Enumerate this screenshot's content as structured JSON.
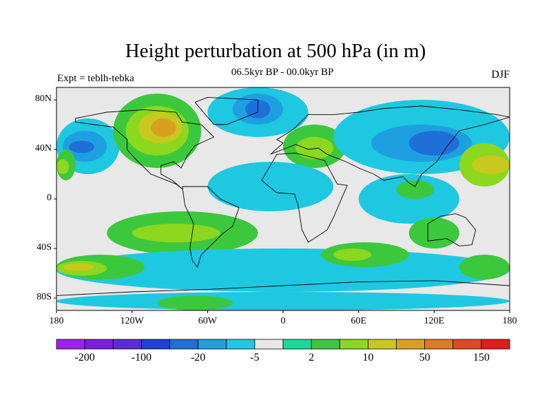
{
  "title": "Height perturbation at 500 hPa (in m)",
  "subtitle": "06.5kyr BP - 00.0kyr BP",
  "left_label": "Expt = teblh-tebka",
  "right_label": "DJF",
  "map": {
    "lat_range": [
      -90,
      90
    ],
    "lon_range": [
      -180,
      180
    ],
    "lat_ticks": [
      {
        "value": 80,
        "label": "80N"
      },
      {
        "value": 40,
        "label": "40N"
      },
      {
        "value": 0,
        "label": "0"
      },
      {
        "value": -40,
        "label": "40S"
      },
      {
        "value": -80,
        "label": "80S"
      }
    ],
    "lon_ticks": [
      {
        "value": -180,
        "label": "180"
      },
      {
        "value": -120,
        "label": "120W"
      },
      {
        "value": -60,
        "label": "60W"
      },
      {
        "value": 0,
        "label": "0"
      },
      {
        "value": 60,
        "label": "60E"
      },
      {
        "value": 120,
        "label": "120E"
      },
      {
        "value": 180,
        "label": "180"
      }
    ],
    "ocean_land_background": "#e8e8e8",
    "anomaly_regions": [
      {
        "level": 6,
        "lon": [
          -180,
          -130
        ],
        "lat": [
          20,
          65
        ]
      },
      {
        "level": 5,
        "lon": [
          -175,
          -140
        ],
        "lat": [
          30,
          55
        ]
      },
      {
        "level": 4,
        "lon": [
          -170,
          -150
        ],
        "lat": [
          37,
          47
        ]
      },
      {
        "level": 9,
        "lon": [
          -135,
          -65
        ],
        "lat": [
          25,
          85
        ]
      },
      {
        "level": 10,
        "lon": [
          -125,
          -75
        ],
        "lat": [
          35,
          75
        ]
      },
      {
        "level": 11,
        "lon": [
          -115,
          -80
        ],
        "lat": [
          45,
          70
        ]
      },
      {
        "level": 12,
        "lon": [
          -105,
          -85
        ],
        "lat": [
          50,
          65
        ]
      },
      {
        "level": 9,
        "lon": [
          -180,
          -165
        ],
        "lat": [
          15,
          40
        ]
      },
      {
        "level": 10,
        "lon": [
          -180,
          -170
        ],
        "lat": [
          20,
          32
        ]
      },
      {
        "level": 6,
        "lon": [
          -60,
          20
        ],
        "lat": [
          50,
          90
        ]
      },
      {
        "level": 5,
        "lon": [
          -40,
          0
        ],
        "lat": [
          60,
          85
        ]
      },
      {
        "level": 4,
        "lon": [
          -30,
          -10
        ],
        "lat": [
          65,
          80
        ]
      },
      {
        "level": 9,
        "lon": [
          0,
          50
        ],
        "lat": [
          25,
          60
        ]
      },
      {
        "level": 10,
        "lon": [
          10,
          40
        ],
        "lat": [
          32,
          50
        ]
      },
      {
        "level": 6,
        "lon": [
          40,
          180
        ],
        "lat": [
          20,
          80
        ]
      },
      {
        "level": 5,
        "lon": [
          70,
          150
        ],
        "lat": [
          30,
          60
        ]
      },
      {
        "level": 4,
        "lon": [
          100,
          140
        ],
        "lat": [
          35,
          55
        ]
      },
      {
        "level": 10,
        "lon": [
          140,
          180
        ],
        "lat": [
          10,
          45
        ]
      },
      {
        "level": 11,
        "lon": [
          150,
          180
        ],
        "lat": [
          20,
          35
        ]
      },
      {
        "level": 6,
        "lon": [
          -60,
          40
        ],
        "lat": [
          -10,
          30
        ]
      },
      {
        "level": 6,
        "lon": [
          60,
          140
        ],
        "lat": [
          -20,
          20
        ]
      },
      {
        "level": 9,
        "lon": [
          90,
          120
        ],
        "lat": [
          0,
          15
        ]
      },
      {
        "level": 9,
        "lon": [
          -140,
          -20
        ],
        "lat": [
          -45,
          -10
        ]
      },
      {
        "level": 10,
        "lon": [
          -120,
          -50
        ],
        "lat": [
          -35,
          -20
        ]
      },
      {
        "level": 9,
        "lon": [
          100,
          140
        ],
        "lat": [
          -40,
          -15
        ]
      },
      {
        "level": 6,
        "lon": [
          -180,
          180
        ],
        "lat": [
          -75,
          -40
        ]
      },
      {
        "level": 9,
        "lon": [
          -180,
          -110
        ],
        "lat": [
          -65,
          -45
        ]
      },
      {
        "level": 10,
        "lon": [
          -180,
          -140
        ],
        "lat": [
          -62,
          -50
        ]
      },
      {
        "level": 11,
        "lon": [
          -175,
          -150
        ],
        "lat": [
          -58,
          -52
        ]
      },
      {
        "level": 9,
        "lon": [
          30,
          100
        ],
        "lat": [
          -55,
          -35
        ]
      },
      {
        "level": 10,
        "lon": [
          40,
          70
        ],
        "lat": [
          -50,
          -40
        ]
      },
      {
        "level": 9,
        "lon": [
          140,
          180
        ],
        "lat": [
          -65,
          -45
        ]
      },
      {
        "level": 6,
        "lon": [
          -180,
          180
        ],
        "lat": [
          -90,
          -75
        ]
      },
      {
        "level": 9,
        "lon": [
          -100,
          -40
        ],
        "lat": [
          -90,
          -78
        ]
      }
    ]
  },
  "colorbar": {
    "colors": [
      "#a020f0",
      "#7d1fe0",
      "#5a2bd8",
      "#1f3fd8",
      "#1e70d8",
      "#1ea0e0",
      "#1ec8e0",
      "#e8e8e8",
      "#1ed89a",
      "#3cc83c",
      "#8cd81e",
      "#c8c81e",
      "#d8a01e",
      "#e07a1e",
      "#e04a1e",
      "#e01e1e"
    ],
    "labels": [
      "-200",
      "-100",
      "-20",
      "-5",
      "2",
      "10",
      "50",
      "150"
    ]
  }
}
